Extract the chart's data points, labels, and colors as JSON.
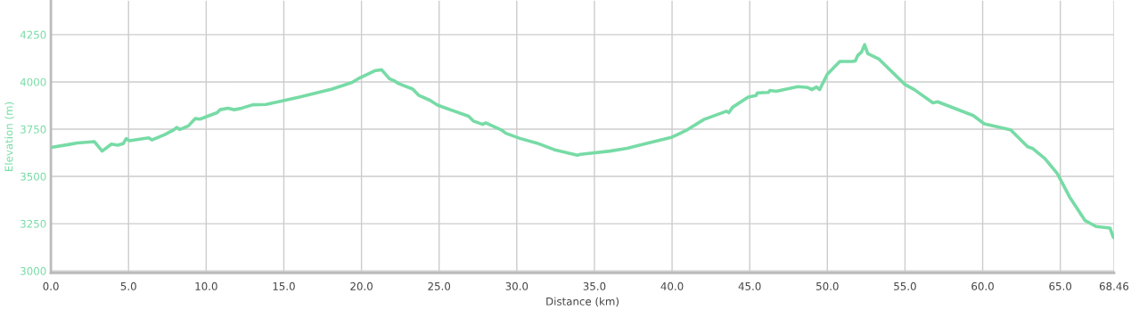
{
  "chart_data": {
    "type": "line",
    "xlabel": "Distance (km)",
    "ylabel": "Elevation (m)",
    "xlim": [
      0,
      68.46
    ],
    "ylim": [
      2990,
      4430
    ],
    "xticks": [
      {
        "value": 0,
        "label": "0.0"
      },
      {
        "value": 5,
        "label": "5.0"
      },
      {
        "value": 10,
        "label": "10.0"
      },
      {
        "value": 15,
        "label": "15.0"
      },
      {
        "value": 20,
        "label": "20.0"
      },
      {
        "value": 25,
        "label": "25.0"
      },
      {
        "value": 30,
        "label": "30.0"
      },
      {
        "value": 35,
        "label": "35.0"
      },
      {
        "value": 40,
        "label": "40.0"
      },
      {
        "value": 45,
        "label": "45.0"
      },
      {
        "value": 50,
        "label": "50.0"
      },
      {
        "value": 55,
        "label": "55.0"
      },
      {
        "value": 60,
        "label": "60.0"
      },
      {
        "value": 65,
        "label": "65.0"
      },
      {
        "value": 68.46,
        "label": "68.46"
      }
    ],
    "yticks": [
      3000,
      3250,
      3500,
      3750,
      4000,
      4250
    ],
    "grid": true,
    "legend": false,
    "marker": "none",
    "line_style": "solid",
    "series": [
      {
        "color": "#77dba6",
        "x": [
          0,
          1.1,
          1.7,
          2.8,
          3.3,
          3.9,
          4.3,
          4.65,
          4.85,
          5.05,
          6.3,
          6.5,
          7.3,
          7.9,
          8.1,
          8.3,
          8.85,
          9.3,
          9.6,
          10.7,
          10.9,
          11.4,
          11.8,
          12.2,
          13.0,
          13.85,
          14.9,
          16.0,
          18.1,
          19.4,
          19.9,
          20.9,
          21.3,
          21.8,
          22.1,
          22.4,
          23.3,
          23.7,
          24.4,
          24.9,
          25.45,
          26.9,
          27.2,
          27.8,
          28.0,
          29.0,
          29.3,
          30.2,
          31.3,
          32.4,
          33.9,
          34.1,
          36.0,
          37.1,
          38.3,
          40.0,
          40.9,
          42.05,
          43.5,
          43.65,
          43.9,
          44.9,
          45.4,
          45.5,
          46.2,
          46.3,
          46.7,
          48.1,
          48.75,
          49.0,
          49.3,
          49.5,
          50.0,
          50.8,
          51.6,
          51.8,
          51.95,
          52.2,
          52.4,
          52.6,
          53.3,
          55.0,
          55.6,
          56.8,
          57.1,
          59.4,
          60.1,
          61.8,
          62.9,
          63.2,
          64.0,
          64.8,
          65.6,
          66.6,
          67.3,
          68.2,
          68.4,
          68.46
        ],
        "values": [
          3653,
          3668,
          3677,
          3684,
          3634,
          3671,
          3665,
          3673,
          3700,
          3689,
          3704,
          3693,
          3720,
          3746,
          3759,
          3748,
          3767,
          3806,
          3803,
          3837,
          3853,
          3861,
          3853,
          3859,
          3879,
          3881,
          3900,
          3920,
          3962,
          3997,
          4022,
          4060,
          4064,
          4017,
          4006,
          3991,
          3962,
          3928,
          3903,
          3877,
          3861,
          3818,
          3793,
          3775,
          3783,
          3746,
          3728,
          3701,
          3676,
          3642,
          3612,
          3617,
          3634,
          3649,
          3673,
          3708,
          3743,
          3801,
          3845,
          3837,
          3866,
          3920,
          3928,
          3942,
          3944,
          3955,
          3950,
          3975,
          3970,
          3959,
          3973,
          3959,
          4041,
          4108,
          4108,
          4111,
          4139,
          4158,
          4197,
          4150,
          4122,
          3986,
          3959,
          3889,
          3895,
          3822,
          3778,
          3746,
          3657,
          3649,
          3595,
          3516,
          3391,
          3266,
          3235,
          3227,
          3180,
          3175
        ]
      }
    ]
  }
}
